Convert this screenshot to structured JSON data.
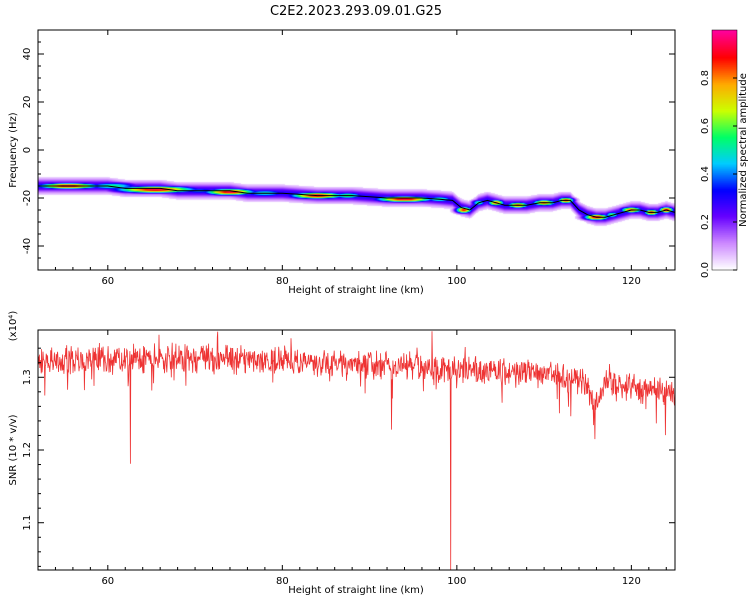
{
  "figure_title": "C2E2.2023.293.09.01.G25",
  "colors": {
    "snr_line": "#ee3333",
    "ridge": "#000000"
  },
  "chart_data": [
    {
      "type": "heatmap",
      "title": "C2E2.2023.293.09.01.G25",
      "xlabel": "Height of straight line (km)",
      "ylabel": "Frequency (Hz)",
      "xlim": [
        52,
        125
      ],
      "ylim": [
        -50,
        50
      ],
      "x_ticks": [
        60,
        80,
        100,
        120
      ],
      "y_ticks": [
        40,
        20,
        0,
        -20,
        -40
      ],
      "colorbar": {
        "label": "Normalized spectral amplitude",
        "range": [
          0,
          1
        ],
        "ticks": [
          "0.0",
          "0.2",
          "0.4",
          "0.6",
          "0.8"
        ],
        "colormap": [
          "#ffffff",
          "#cc88ff",
          "#6600ff",
          "#0000ff",
          "#00ccff",
          "#00ff66",
          "#ccff00",
          "#ffaa00",
          "#ff0000",
          "#ff0099"
        ]
      },
      "ridge": {
        "x": [
          52,
          54,
          57,
          60,
          62,
          63,
          66,
          68,
          70,
          72,
          74,
          76,
          78,
          80,
          82,
          84,
          86,
          88,
          90,
          92,
          94,
          96,
          98,
          99.5,
          100.5,
          101.5,
          102.5,
          103.5,
          104.5,
          105.5,
          106.5,
          108,
          109.5,
          111,
          112,
          113,
          114,
          115,
          116,
          117,
          118,
          119,
          120,
          121,
          122,
          123,
          124,
          125
        ],
        "y": [
          -15,
          -15,
          -15,
          -15,
          -16,
          -16,
          -16,
          -17,
          -17,
          -17,
          -17,
          -18,
          -18,
          -18,
          -18.5,
          -19,
          -19,
          -19,
          -19.5,
          -20,
          -20,
          -20,
          -20.5,
          -21,
          -24,
          -25,
          -22,
          -21,
          -22,
          -23,
          -23,
          -23,
          -22,
          -22,
          -21,
          -21,
          -25,
          -27,
          -28,
          -28,
          -27,
          -26,
          -25,
          -25,
          -26,
          -26,
          -25,
          -26
        ]
      },
      "blobs": [
        {
          "x": 55.5,
          "y": -15,
          "amp": 0.95,
          "wx": 3.5,
          "wy": 1.2
        },
        {
          "x": 60.5,
          "y": -15,
          "amp": 0.55,
          "wx": 3.0,
          "wy": 1.5
        },
        {
          "x": 65.5,
          "y": -16.5,
          "amp": 0.95,
          "wx": 4.5,
          "wy": 1.4
        },
        {
          "x": 70.5,
          "y": -17,
          "amp": 0.4,
          "wx": 2.5,
          "wy": 1.5
        },
        {
          "x": 74,
          "y": -17.5,
          "amp": 0.95,
          "wx": 2.8,
          "wy": 1.3
        },
        {
          "x": 78,
          "y": -18,
          "amp": 0.5,
          "wx": 2.5,
          "wy": 1.5
        },
        {
          "x": 84,
          "y": -19,
          "amp": 0.95,
          "wx": 3.0,
          "wy": 1.3
        },
        {
          "x": 87.5,
          "y": -19,
          "amp": 0.6,
          "wx": 1.8,
          "wy": 1.3
        },
        {
          "x": 94,
          "y": -20.5,
          "amp": 0.95,
          "wx": 3.2,
          "wy": 1.2
        },
        {
          "x": 98,
          "y": -20.5,
          "amp": 0.55,
          "wx": 1.6,
          "wy": 1.2
        },
        {
          "x": 100.8,
          "y": -25,
          "amp": 0.9,
          "wx": 0.9,
          "wy": 1.3
        },
        {
          "x": 102.5,
          "y": -22,
          "amp": 0.55,
          "wx": 0.8,
          "wy": 1.2
        },
        {
          "x": 104.5,
          "y": -22,
          "amp": 0.85,
          "wx": 0.9,
          "wy": 1.2
        },
        {
          "x": 107,
          "y": -23,
          "amp": 0.85,
          "wx": 1.2,
          "wy": 1.2
        },
        {
          "x": 110,
          "y": -22,
          "amp": 0.85,
          "wx": 1.3,
          "wy": 1.2
        },
        {
          "x": 112.5,
          "y": -21,
          "amp": 0.9,
          "wx": 0.9,
          "wy": 1.2
        },
        {
          "x": 116,
          "y": -28,
          "amp": 0.95,
          "wx": 1.4,
          "wy": 1.2
        },
        {
          "x": 117.8,
          "y": -27,
          "amp": 0.6,
          "wx": 0.8,
          "wy": 1.2
        },
        {
          "x": 120,
          "y": -25,
          "amp": 0.85,
          "wx": 1.2,
          "wy": 1.2
        },
        {
          "x": 122.3,
          "y": -26,
          "amp": 0.9,
          "wx": 0.8,
          "wy": 1.2
        },
        {
          "x": 124,
          "y": -25,
          "amp": 0.95,
          "wx": 0.8,
          "wy": 1.2
        }
      ]
    },
    {
      "type": "line",
      "xlabel": "Height of straight line (km)",
      "ylabel": "SNR (10 * v/v)",
      "y_multiplier": "(x10⁴)",
      "xlim": [
        52,
        125
      ],
      "ylim": [
        1.035,
        1.365
      ],
      "x_ticks": [
        60,
        80,
        100,
        120
      ],
      "y_ticks": [
        1.1,
        1.2,
        1.3
      ],
      "trend": {
        "x": [
          52,
          60,
          70,
          80,
          90,
          100,
          110,
          115,
          120,
          125
        ],
        "y": [
          1.323,
          1.325,
          1.326,
          1.322,
          1.318,
          1.312,
          1.305,
          1.295,
          1.285,
          1.275
        ]
      },
      "spikes": [
        {
          "x": 62.6,
          "y": 1.181
        },
        {
          "x": 92.5,
          "y": 1.228
        },
        {
          "x": 99.3,
          "y": 1.035
        },
        {
          "x": 115.8,
          "y": 1.215
        },
        {
          "x": 52.8,
          "y": 1.275
        },
        {
          "x": 105.2,
          "y": 1.265
        },
        {
          "x": 111.5,
          "y": 1.27
        }
      ]
    }
  ]
}
